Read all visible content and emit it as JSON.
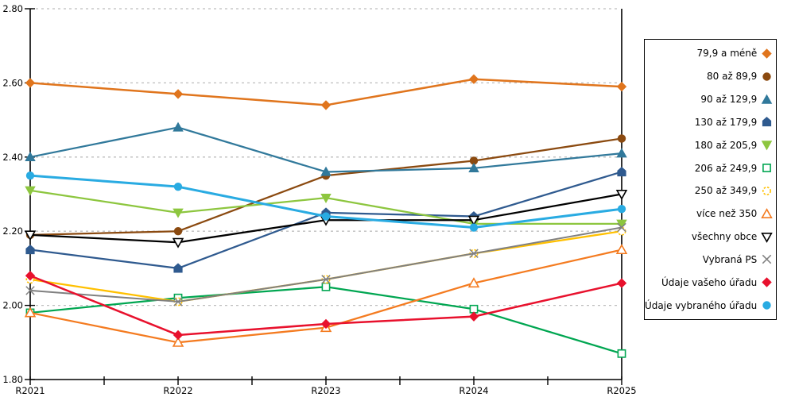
{
  "chart_data": {
    "type": "line",
    "title": "",
    "xlabel": "",
    "ylabel": "",
    "categories": [
      "R2021",
      "R2022",
      "R2023",
      "R2024",
      "R2025"
    ],
    "ylim": [
      1.8,
      2.8
    ],
    "yticks": [
      1.8,
      2.0,
      2.2,
      2.4,
      2.6,
      2.8
    ],
    "ytick_labels": [
      "1.80",
      "2.00",
      "2.20",
      "2.40",
      "2.60",
      "2.80"
    ],
    "grid": "horizontal-dashed",
    "grid_color": "#BDBDBD",
    "axis_color": "#000000",
    "legend_position": "right",
    "series": [
      {
        "name": "79,9 a méně",
        "marker": "diamond",
        "fill": "solid",
        "color": "#E0751D",
        "line_width": 2.5,
        "values": [
          2.6,
          2.57,
          2.54,
          2.61,
          2.59
        ]
      },
      {
        "name": "80 až 89,9",
        "marker": "circle",
        "fill": "solid",
        "color": "#8B4A10",
        "line_width": 2.25,
        "values": [
          2.19,
          2.2,
          2.35,
          2.39,
          2.45
        ]
      },
      {
        "name": "90 až 129,9",
        "marker": "triangle-up",
        "fill": "solid",
        "color": "#31799B",
        "line_width": 2.25,
        "values": [
          2.4,
          2.48,
          2.36,
          2.37,
          2.41
        ]
      },
      {
        "name": "130 až 179,9",
        "marker": "pentagon",
        "fill": "solid",
        "color": "#2F5A8F",
        "line_width": 2.25,
        "values": [
          2.15,
          2.1,
          2.25,
          2.24,
          2.36
        ]
      },
      {
        "name": "180 až 205,9",
        "marker": "triangle-down",
        "fill": "solid",
        "color": "#8DC63F",
        "line_width": 2.25,
        "values": [
          2.31,
          2.25,
          2.29,
          2.22,
          2.22
        ]
      },
      {
        "name": "206 až 249,9",
        "marker": "square",
        "fill": "open",
        "color": "#00A651",
        "line_width": 2.25,
        "values": [
          1.98,
          2.02,
          2.05,
          1.99,
          1.87
        ]
      },
      {
        "name": "250 až 349,9",
        "marker": "circle",
        "fill": "open-dashed",
        "color": "#FFC000",
        "line_width": 2.25,
        "values": [
          2.07,
          2.01,
          2.07,
          2.14,
          2.2
        ]
      },
      {
        "name": "více než 350",
        "marker": "triangle-up",
        "fill": "open",
        "color": "#F47B20",
        "line_width": 2.25,
        "values": [
          1.98,
          1.9,
          1.94,
          2.06,
          2.15
        ]
      },
      {
        "name": "všechny obce",
        "marker": "triangle-down",
        "fill": "open",
        "color": "#000000",
        "line_width": 2.25,
        "values": [
          2.19,
          2.17,
          2.23,
          2.23,
          2.3
        ]
      },
      {
        "name": "Vybraná PS",
        "marker": "x",
        "fill": "open",
        "color": "#808080",
        "line_width": 2,
        "values": [
          2.04,
          2.01,
          2.07,
          2.14,
          2.21
        ]
      },
      {
        "name": "Údaje vašeho úřadu",
        "marker": "diamond",
        "fill": "solid",
        "color": "#E8112D",
        "line_width": 2.5,
        "values": [
          2.08,
          1.92,
          1.95,
          1.97,
          2.06
        ]
      },
      {
        "name": "Údaje vybraného úřadu",
        "marker": "circle",
        "fill": "solid",
        "color": "#29ABE2",
        "line_width": 3,
        "values": [
          2.35,
          2.32,
          2.24,
          2.21,
          2.26
        ]
      }
    ]
  }
}
